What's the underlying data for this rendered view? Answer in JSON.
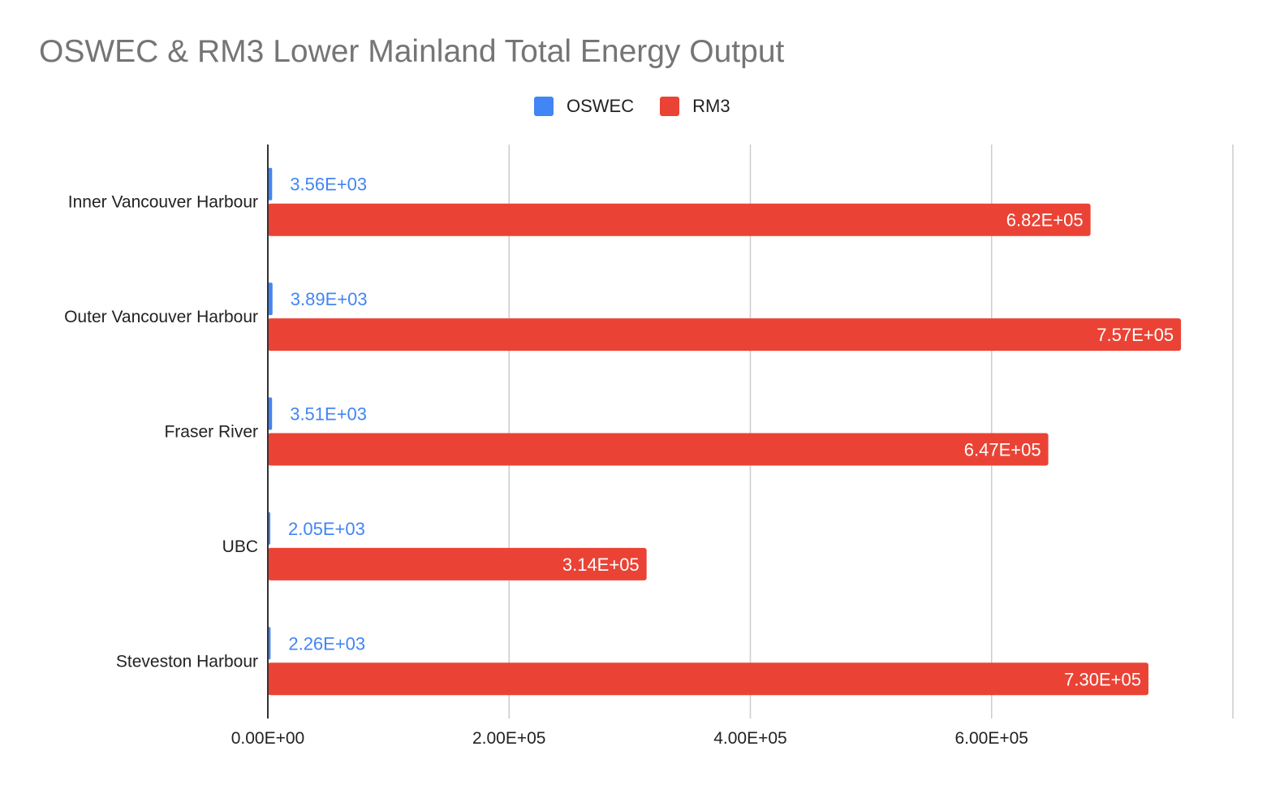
{
  "chart_data": {
    "type": "bar",
    "orientation": "horizontal",
    "title": "OSWEC & RM3 Lower Mainland Total Energy Output",
    "xlabel": "",
    "ylabel": "",
    "xlim": [
      0,
      800000
    ],
    "x_ticks": [
      0,
      200000,
      400000,
      600000,
      800000
    ],
    "x_tick_labels": [
      "0.00E+00",
      "2.00E+05",
      "4.00E+05",
      "6.00E+05",
      ""
    ],
    "grid": true,
    "legend_position": "top-center",
    "categories": [
      "Inner Vancouver Harbour",
      "Outer Vancouver Harbour",
      "Fraser River",
      "UBC",
      "Steveston Harbour"
    ],
    "series": [
      {
        "name": "OSWEC",
        "color": "#4285f4",
        "values": [
          3560,
          3890,
          3510,
          2050,
          2260
        ],
        "labels": [
          "3.56E+03",
          "3.89E+03",
          "3.51E+03",
          "2.05E+03",
          "2.26E+03"
        ]
      },
      {
        "name": "RM3",
        "color": "#ea4335",
        "values": [
          682000,
          757000,
          647000,
          314000,
          730000
        ],
        "labels": [
          "6.82E+05",
          "7.57E+05",
          "6.47E+05",
          "3.14E+05",
          "7.30E+05"
        ]
      }
    ]
  }
}
